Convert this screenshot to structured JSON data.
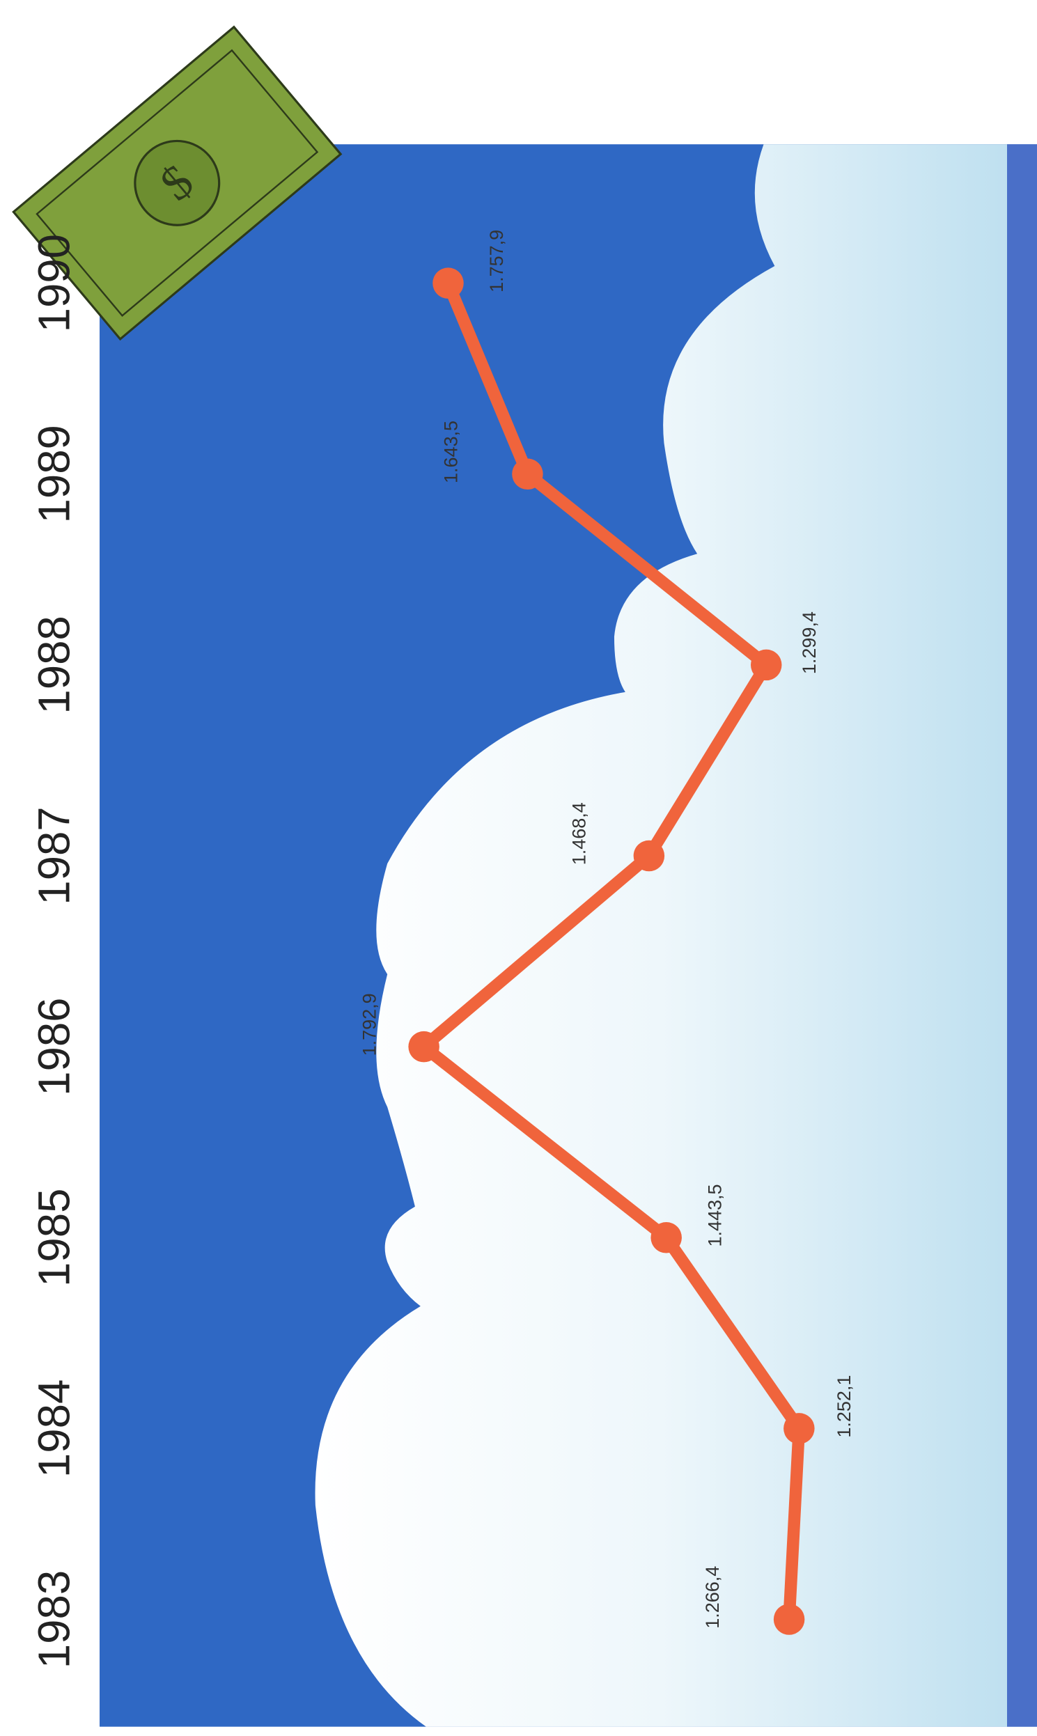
{
  "chart_data": {
    "type": "line",
    "categories": [
      "1983",
      "1984",
      "1985",
      "1986",
      "1987",
      "1988",
      "1989",
      "1990"
    ],
    "values": [
      1266.4,
      1252.1,
      1443.5,
      1792.9,
      1468.4,
      1299.4,
      1643.5,
      1757.9
    ],
    "value_labels": [
      "1.266,4",
      "1.252,1",
      "1.443,5",
      "1.792,9",
      "1.468,4",
      "1.299,4",
      "1.643,5",
      "1.757,9"
    ],
    "color": "#f0643c"
  }
}
